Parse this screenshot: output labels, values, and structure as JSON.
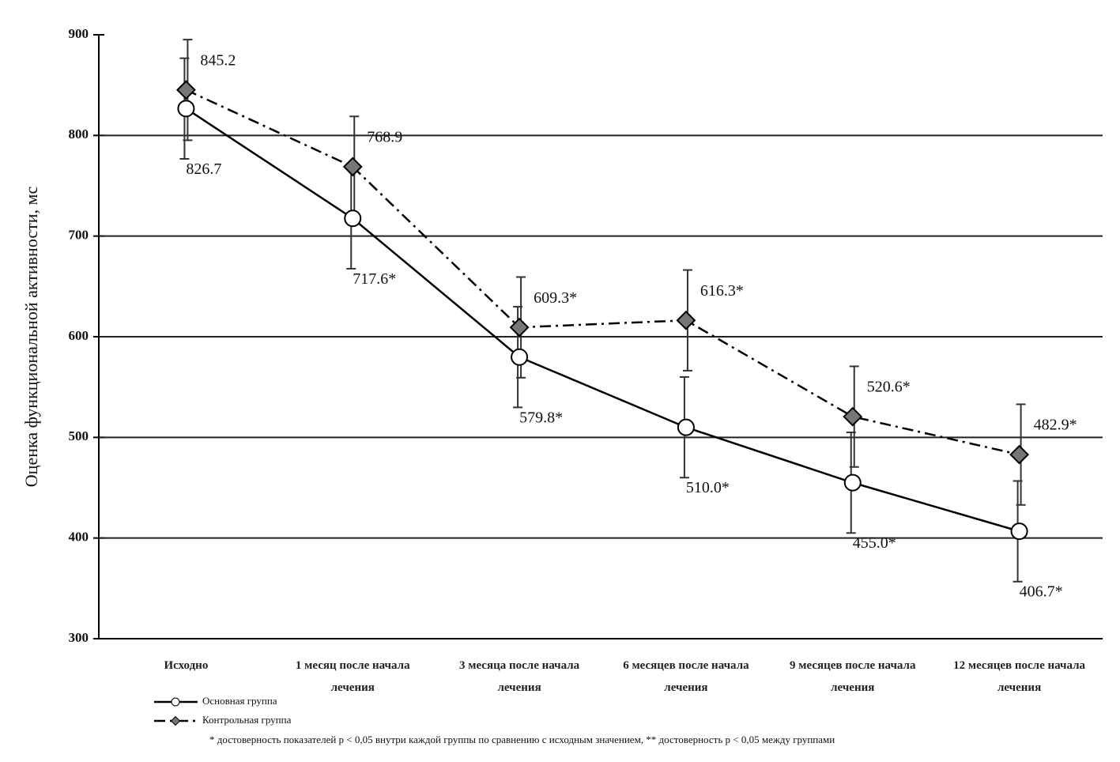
{
  "chart_data": {
    "type": "line",
    "y_label": "Оценка функциональной активности, мс",
    "categories": [
      "Исходно",
      "1 месяц после начала лечения",
      "3 месяца после начала лечения",
      "6 месяцев после начала лечения",
      "9 месяцев после начала лечения",
      "12 месяцев после начала лечения"
    ],
    "series": [
      {
        "name": "Основная группа",
        "color": "#000000",
        "line_style": "solid",
        "marker": "circle",
        "values": [
          826.7,
          717.6,
          579.8,
          510.0,
          455.0,
          406.7
        ],
        "value_labels": [
          "826.7",
          "717.6*",
          "579.8*",
          "510.0*",
          "455.0*",
          "406.7*"
        ],
        "errors": [
          50,
          50,
          50,
          50,
          50,
          50
        ]
      },
      {
        "name": "Контрольная группа",
        "color": "#000000",
        "line_style": "dashdot",
        "marker": "diamond",
        "values": [
          845.2,
          768.9,
          609.3,
          616.3,
          520.6,
          482.9
        ],
        "value_labels": [
          "845.2",
          "768.9",
          "609.3*",
          "616.3*",
          "520.6*",
          "482.9*"
        ],
        "errors": [
          50,
          50,
          50,
          50,
          50,
          50
        ]
      }
    ],
    "ylim": [
      300,
      900
    ],
    "yticks": [
      300,
      400,
      500,
      600,
      700,
      800,
      900
    ],
    "grid": true,
    "footnote": "* достоверность показателей р < 0,05 внутри каждой группы по сравнению с исходным значением, ** достоверность р < 0,05 между группами"
  }
}
